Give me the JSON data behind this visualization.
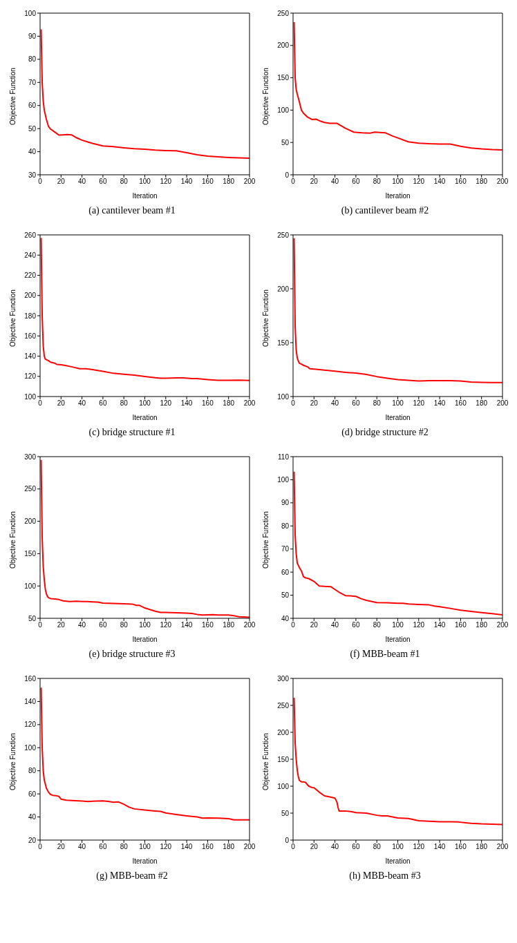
{
  "chart_data": [
    {
      "type": "line",
      "title": "(a)  cantilever beam #1",
      "xlabel": "Iteration",
      "ylabel": "Objective Function",
      "x": [
        1,
        2,
        3,
        4,
        6,
        8,
        10,
        14,
        18,
        22,
        26,
        30,
        35,
        40,
        45,
        50,
        60,
        70,
        80,
        90,
        100,
        110,
        120,
        130,
        140,
        150,
        160,
        170,
        180,
        190,
        200
      ],
      "series": [
        {
          "color": "#ff0000",
          "values": [
            93,
            70,
            62,
            58,
            54,
            51,
            49.8,
            48.5,
            47.2,
            47.3,
            47.4,
            47.3,
            46,
            45,
            44.3,
            43.6,
            42.5,
            42.2,
            41.7,
            41.3,
            41.1,
            40.7,
            40.5,
            40.4,
            39.6,
            38.7,
            38.1,
            37.8,
            37.5,
            37.3,
            37.2
          ]
        }
      ],
      "xlim": [
        0,
        200
      ],
      "xticks": [
        0,
        20,
        40,
        60,
        80,
        100,
        120,
        140,
        160,
        180,
        200
      ],
      "ylim": [
        30,
        100
      ],
      "yticks": [
        30,
        40,
        50,
        60,
        70,
        80,
        90,
        100
      ]
    },
    {
      "type": "line",
      "title": "(b)  cantilever beam #2",
      "xlabel": "Iteration",
      "ylabel": "Objective Function",
      "x": [
        1,
        2,
        3,
        4,
        6,
        8,
        10,
        14,
        18,
        22,
        26,
        30,
        35,
        42,
        50,
        58,
        66,
        74,
        78,
        88,
        95,
        100,
        110,
        120,
        130,
        140,
        150,
        160,
        170,
        180,
        190,
        200
      ],
      "series": [
        {
          "color": "#ff0000",
          "values": [
            236,
            150,
            132,
            125,
            113,
            100,
            95,
            89,
            85.5,
            86,
            83,
            81,
            79.5,
            79.5,
            72,
            66,
            65,
            64.5,
            66,
            65,
            60,
            57,
            51,
            49,
            48,
            47.5,
            47.5,
            44,
            41.5,
            40,
            39,
            38.5
          ]
        }
      ],
      "xlim": [
        0,
        200
      ],
      "xticks": [
        0,
        20,
        40,
        60,
        80,
        100,
        120,
        140,
        160,
        180,
        200
      ],
      "ylim": [
        0,
        250
      ],
      "yticks": [
        0,
        50,
        100,
        150,
        200,
        250
      ]
    },
    {
      "type": "line",
      "title": "(c)  bridge structure #1",
      "xlabel": "Iteration",
      "ylabel": "Objective Function",
      "x": [
        1,
        2,
        3,
        4,
        5,
        6,
        8,
        10,
        14,
        16,
        20,
        24,
        30,
        38,
        44,
        50,
        60,
        70,
        80,
        90,
        100,
        110,
        115,
        120,
        130,
        137,
        145,
        150,
        160,
        170,
        180,
        190,
        200
      ],
      "series": [
        {
          "color": "#ff0000",
          "values": [
            257,
            180,
            150,
            140,
            137,
            136.5,
            135.5,
            134,
            133,
            131.8,
            131.5,
            130.8,
            129.5,
            127.5,
            127.5,
            126.7,
            125,
            123,
            122,
            121.2,
            119.8,
            118.6,
            118.2,
            118.2,
            118.4,
            118.5,
            117.8,
            117.7,
            116.8,
            116,
            116.1,
            116.2,
            115.9
          ]
        }
      ],
      "xlim": [
        0,
        200
      ],
      "xticks": [
        0,
        20,
        40,
        60,
        80,
        100,
        120,
        140,
        160,
        180,
        200
      ],
      "ylim": [
        100,
        260
      ],
      "yticks": [
        100,
        120,
        140,
        160,
        180,
        200,
        220,
        240,
        260
      ]
    },
    {
      "type": "line",
      "title": "(d)  bridge structure #2",
      "xlabel": "Iteration",
      "ylabel": "Objective Function",
      "x": [
        1,
        2,
        3,
        4,
        5,
        6,
        8,
        10,
        14,
        16,
        20,
        30,
        40,
        50,
        60,
        70,
        80,
        90,
        100,
        110,
        120,
        130,
        140,
        150,
        160,
        170,
        180,
        190,
        200
      ],
      "series": [
        {
          "color": "#ff0000",
          "values": [
            247,
            165,
            143,
            136,
            133,
            131,
            130,
            129,
            127.5,
            125.8,
            125.5,
            124.5,
            123.5,
            122.5,
            121.8,
            120.5,
            118.5,
            117,
            115.7,
            115,
            114.5,
            114.7,
            114.8,
            114.7,
            114.4,
            113.5,
            113.2,
            113,
            113
          ]
        }
      ],
      "xlim": [
        0,
        200
      ],
      "xticks": [
        0,
        20,
        40,
        60,
        80,
        100,
        120,
        140,
        160,
        180,
        200
      ],
      "ylim": [
        100,
        250
      ],
      "yticks": [
        100,
        150,
        200,
        250
      ]
    },
    {
      "type": "line",
      "title": "(e)  bridge structure #3",
      "xlabel": "Iteration",
      "ylabel": "Objective Function",
      "x": [
        1,
        2,
        3,
        4,
        5,
        6,
        7,
        8,
        10,
        14,
        18,
        22,
        28,
        35,
        40,
        45,
        50,
        55,
        60,
        70,
        80,
        88,
        92,
        95,
        100,
        110,
        115,
        120,
        130,
        140,
        145,
        150,
        155,
        165,
        170,
        180,
        185,
        190,
        200
      ],
      "series": [
        {
          "color": "#ff0000",
          "values": [
            295,
            175,
            130,
            110,
            95,
            88,
            84,
            82,
            80.5,
            80,
            79,
            77,
            76,
            76.5,
            76,
            76,
            75.5,
            75,
            73.5,
            73,
            72.5,
            72,
            70,
            70,
            66,
            61,
            59,
            59,
            58.5,
            58,
            57.5,
            56,
            55,
            55.5,
            55,
            55,
            54,
            52.5,
            51.5
          ]
        }
      ],
      "xlim": [
        0,
        200
      ],
      "xticks": [
        0,
        20,
        40,
        60,
        80,
        100,
        120,
        140,
        160,
        180,
        200
      ],
      "ylim": [
        50,
        300
      ],
      "yticks": [
        50,
        100,
        150,
        200,
        250,
        300
      ]
    },
    {
      "type": "line",
      "title": "(f)  MBB-beam #1",
      "xlabel": "Iteration",
      "ylabel": "Objective Function",
      "x": [
        1,
        2,
        3,
        4,
        5,
        6,
        8,
        10,
        12,
        15,
        20,
        25,
        30,
        36,
        40,
        45,
        50,
        55,
        60,
        65,
        70,
        80,
        90,
        100,
        105,
        110,
        120,
        130,
        135,
        140,
        150,
        160,
        170,
        180,
        190,
        200
      ],
      "series": [
        {
          "color": "#ff0000",
          "values": [
            103.5,
            76,
            68,
            64,
            63,
            62,
            60.5,
            58,
            57.5,
            57.2,
            56,
            54,
            53.8,
            53.7,
            52.5,
            51,
            49.8,
            49.7,
            49.5,
            48.5,
            47.8,
            46.8,
            46.7,
            46.5,
            46.5,
            46.2,
            46,
            45.8,
            45.3,
            45,
            44.3,
            43.5,
            43,
            42.5,
            42,
            41.5
          ]
        }
      ],
      "xlim": [
        0,
        200
      ],
      "xticks": [
        0,
        20,
        40,
        60,
        80,
        100,
        120,
        140,
        160,
        180,
        200
      ],
      "ylim": [
        40,
        110
      ],
      "yticks": [
        40,
        50,
        60,
        70,
        80,
        90,
        100,
        110
      ]
    },
    {
      "type": "line",
      "title": "(g)  MBB-beam #2",
      "xlabel": "Iteration",
      "ylabel": "Objective Function",
      "x": [
        1,
        2,
        3,
        4,
        6,
        8,
        10,
        12,
        15,
        18,
        20,
        25,
        30,
        40,
        46,
        50,
        60,
        65,
        70,
        75,
        80,
        85,
        90,
        100,
        110,
        115,
        120,
        130,
        140,
        150,
        155,
        160,
        170,
        180,
        185,
        190,
        200
      ],
      "series": [
        {
          "color": "#ff0000",
          "values": [
            152,
            100,
            80,
            72,
            65,
            61.5,
            59.5,
            58.8,
            58.5,
            57.8,
            55.5,
            54.5,
            54.2,
            53.8,
            53.4,
            53.6,
            54,
            53.5,
            52.8,
            53,
            51,
            48.5,
            47,
            46,
            45.2,
            44.8,
            43.5,
            42.2,
            41,
            40,
            39,
            39.2,
            39,
            38.5,
            37.5,
            37.5,
            37.5
          ]
        }
      ],
      "xlim": [
        0,
        200
      ],
      "xticks": [
        0,
        20,
        40,
        60,
        80,
        100,
        120,
        140,
        160,
        180,
        200
      ],
      "ylim": [
        20,
        160
      ],
      "yticks": [
        20,
        40,
        60,
        80,
        100,
        120,
        140,
        160
      ]
    },
    {
      "type": "line",
      "title": "(h)  MBB-beam #3",
      "xlabel": "Iteration",
      "ylabel": "Objective Function",
      "x": [
        1,
        2,
        3,
        4,
        5,
        6,
        8,
        10,
        12,
        15,
        18,
        20,
        25,
        30,
        35,
        40,
        42,
        43,
        44,
        50,
        55,
        60,
        70,
        80,
        85,
        90,
        100,
        110,
        120,
        130,
        140,
        150,
        158,
        165,
        170,
        180,
        190,
        200
      ],
      "series": [
        {
          "color": "#ff0000",
          "values": [
            264,
            180,
            150,
            130,
            118,
            111,
            108,
            108,
            107,
            100,
            97.5,
            97,
            89,
            82,
            80,
            78,
            70,
            60,
            54,
            54,
            53,
            51,
            50,
            46,
            45,
            45,
            41,
            40,
            36,
            35,
            34,
            34,
            33.5,
            32,
            31,
            30,
            29.5,
            29
          ]
        }
      ],
      "xlim": [
        0,
        200
      ],
      "xticks": [
        0,
        20,
        40,
        60,
        80,
        100,
        120,
        140,
        160,
        180,
        200
      ],
      "ylim": [
        0,
        300
      ],
      "yticks": [
        0,
        50,
        100,
        150,
        200,
        250,
        300
      ]
    }
  ]
}
